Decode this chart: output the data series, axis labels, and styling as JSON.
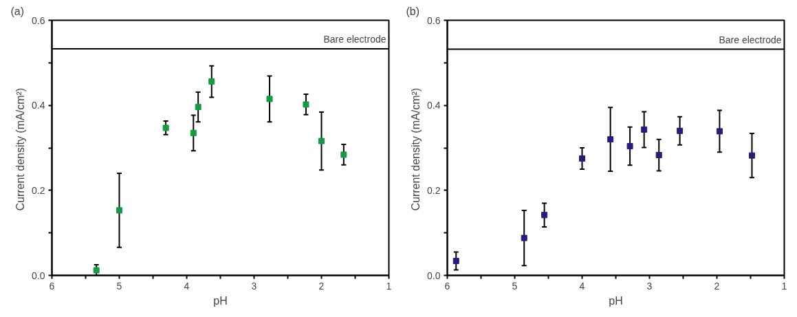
{
  "chart_data": [
    {
      "type": "scatter",
      "title": "(a)",
      "xlabel": "pH",
      "ylabel": "Current density  (mA/cm²)",
      "marker": "square",
      "grid": false,
      "xlim": [
        6,
        1
      ],
      "ylim": [
        0,
        0.6
      ],
      "xticks": [
        6,
        {
          "value": 5.5,
          "label": null
        },
        5,
        {
          "value": 4.5,
          "label": null
        },
        4,
        {
          "value": 3.5,
          "label": null
        },
        3,
        {
          "value": 2.5,
          "label": null
        },
        2,
        {
          "value": 1.5,
          "label": null
        },
        1
      ],
      "yticks": [
        {
          "value": 0,
          "label": "0.0"
        },
        {
          "value": 0.1,
          "label": null
        },
        0.2,
        {
          "value": 0.3,
          "label": null
        },
        0.4,
        {
          "value": 0.5,
          "label": null
        },
        0.6
      ],
      "ref_lines": [
        {
          "axis": "y",
          "value": 0.533,
          "label": "Bare electrode",
          "color": "#000000"
        }
      ],
      "series": [
        {
          "color": "#139a43",
          "x": [
            5.34,
            5.0,
            4.31,
            3.9,
            3.83,
            3.63,
            2.77,
            2.23,
            2.0,
            1.67
          ],
          "values": [
            0.012,
            0.153,
            0.347,
            0.335,
            0.396,
            0.456,
            0.415,
            0.402,
            0.316,
            0.284
          ],
          "errors": [
            0.013,
            0.087,
            0.016,
            0.042,
            0.035,
            0.037,
            0.054,
            0.024,
            0.068,
            0.024
          ]
        }
      ]
    },
    {
      "type": "scatter",
      "title": "(b)",
      "xlabel": "pH",
      "ylabel": "Current density  (mA/cm²)",
      "marker": "square",
      "grid": false,
      "xlim": [
        6,
        1
      ],
      "ylim": [
        0,
        0.6
      ],
      "xticks": [
        6,
        {
          "value": 5.5,
          "label": null
        },
        5,
        {
          "value": 4.5,
          "label": null
        },
        4,
        {
          "value": 3.5,
          "label": null
        },
        3,
        {
          "value": 2.5,
          "label": null
        },
        2,
        {
          "value": 1.5,
          "label": null
        },
        1
      ],
      "yticks": [
        {
          "value": 0,
          "label": "0.0"
        },
        {
          "value": 0.1,
          "label": null
        },
        0.2,
        {
          "value": 0.3,
          "label": null
        },
        0.4,
        {
          "value": 0.5,
          "label": null
        },
        0.6
      ],
      "ref_lines": [
        {
          "axis": "y",
          "value": 0.532,
          "label": "Bare electrode",
          "color": "#000000"
        }
      ],
      "series": [
        {
          "color": "#2b1a7a",
          "x": [
            5.87,
            4.86,
            4.56,
            4.0,
            3.58,
            3.29,
            3.08,
            2.86,
            2.55,
            1.96,
            1.48
          ],
          "values": [
            0.034,
            0.088,
            0.142,
            0.275,
            0.32,
            0.304,
            0.343,
            0.283,
            0.34,
            0.339,
            0.282
          ],
          "errors": [
            0.021,
            0.065,
            0.028,
            0.025,
            0.075,
            0.045,
            0.042,
            0.037,
            0.033,
            0.049,
            0.052
          ]
        }
      ]
    }
  ]
}
